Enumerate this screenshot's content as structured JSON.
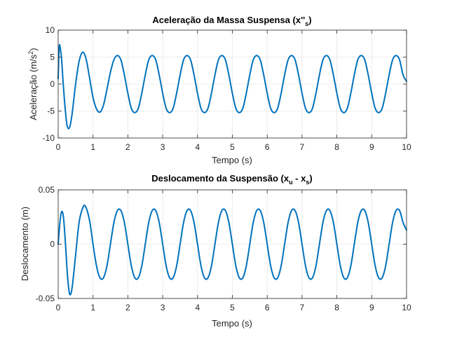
{
  "colors": {
    "series": "#0072BD",
    "axes": "#262626",
    "grid": "#dfdfdf"
  },
  "chart_data": [
    {
      "type": "line",
      "title_main": "Aceleração da Massa Suspensa (x''",
      "title_sub": "s",
      "title_end": ")",
      "xlabel": "Tempo (s)",
      "ylabel_main": "Aceleração (m/s",
      "ylabel_sup": "2",
      "ylabel_end": ")",
      "xlim": [
        0,
        10
      ],
      "ylim": [
        -10,
        10
      ],
      "xticks": [
        0,
        1,
        2,
        3,
        4,
        5,
        6,
        7,
        8,
        9,
        10
      ],
      "yticks": [
        -10,
        -5,
        0,
        5,
        10
      ],
      "xtick_labels": [
        "0",
        "1",
        "2",
        "3",
        "4",
        "5",
        "6",
        "7",
        "8",
        "9",
        "10"
      ],
      "ytick_labels": [
        "-10",
        "-5",
        "0",
        "5",
        "10"
      ],
      "grid": true,
      "series": [
        {
          "x": [
            0,
            0.03,
            0.07,
            0.1,
            0.14,
            0.2,
            0.26,
            0.33,
            0.4,
            0.5,
            0.6,
            0.7,
            0.8,
            0.9,
            1.0,
            1.1,
            1.2,
            1.3,
            1.4,
            1.5,
            1.6,
            1.7,
            1.8,
            1.9,
            2.0,
            2.1,
            2.2,
            2.3,
            2.4,
            2.5,
            2.6,
            2.7,
            2.8,
            2.9,
            3.0,
            3.1,
            3.2,
            3.3,
            3.4,
            3.5,
            3.6,
            3.7,
            3.8,
            3.9,
            4.0,
            4.1,
            4.2,
            4.3,
            4.4,
            4.5,
            4.6,
            4.7,
            4.8,
            4.9,
            5.0,
            5.1,
            5.2,
            5.3,
            5.4,
            5.5,
            5.6,
            5.7,
            5.8,
            5.9,
            6.0,
            6.1,
            6.2,
            6.3,
            6.4,
            6.5,
            6.6,
            6.7,
            6.8,
            6.9,
            7.0,
            7.1,
            7.2,
            7.3,
            7.4,
            7.5,
            7.6,
            7.7,
            7.8,
            7.9,
            8.0,
            8.1,
            8.2,
            8.3,
            8.4,
            8.5,
            8.6,
            8.7,
            8.8,
            8.9,
            9.0,
            9.1,
            9.2,
            9.3,
            9.4,
            9.5,
            9.6,
            9.7,
            9.8,
            9.9,
            10.0
          ],
          "y": [
            1.0,
            7.0,
            6.2,
            4.5,
            0.5,
            -4.5,
            -7.8,
            -8.0,
            -5.5,
            0.0,
            4.2,
            5.9,
            4.7,
            1.2,
            -2.5,
            -4.6,
            -5.2,
            -3.9,
            -1.0,
            2.2,
            4.5,
            5.3,
            4.5,
            1.7,
            -1.7,
            -4.5,
            -5.3,
            -4.5,
            -1.7,
            1.7,
            4.5,
            5.3,
            4.5,
            1.7,
            -1.7,
            -4.5,
            -5.3,
            -4.5,
            -1.7,
            1.7,
            4.5,
            5.3,
            4.5,
            1.7,
            -1.7,
            -4.5,
            -5.3,
            -4.5,
            -1.7,
            1.7,
            4.5,
            5.3,
            4.5,
            1.7,
            -1.7,
            -4.5,
            -5.3,
            -4.5,
            -1.7,
            1.7,
            4.5,
            5.3,
            4.5,
            1.7,
            -1.7,
            -4.5,
            -5.3,
            -4.5,
            -1.7,
            1.7,
            4.5,
            5.3,
            4.5,
            1.7,
            -1.7,
            -4.5,
            -5.3,
            -4.5,
            -1.7,
            1.7,
            4.5,
            5.3,
            4.5,
            1.7,
            -1.7,
            -4.5,
            -5.3,
            -4.5,
            -1.7,
            1.7,
            4.5,
            5.3,
            4.5,
            1.7,
            -1.7,
            -4.5,
            -5.3,
            -4.5,
            -1.7,
            1.7,
            4.5,
            5.3,
            4.5,
            1.7,
            0.5
          ]
        }
      ]
    },
    {
      "type": "line",
      "title_main": "Deslocamento da Suspensão (x",
      "title_sub": "u",
      "title_mid": " - x",
      "title_sub2": "s",
      "title_end": ")",
      "xlabel": "Tempo (s)",
      "ylabel": "Deslocamento (m)",
      "xlim": [
        0,
        10
      ],
      "ylim": [
        -0.05,
        0.05
      ],
      "xticks": [
        0,
        1,
        2,
        3,
        4,
        5,
        6,
        7,
        8,
        9,
        10
      ],
      "yticks": [
        -0.05,
        0,
        0.05
      ],
      "xtick_labels": [
        "0",
        "1",
        "2",
        "3",
        "4",
        "5",
        "6",
        "7",
        "8",
        "9",
        "10"
      ],
      "ytick_labels": [
        "-0.05",
        "0",
        "0.05"
      ],
      "grid": true,
      "series": [
        {
          "x": [
            0,
            0.05,
            0.1,
            0.15,
            0.2,
            0.27,
            0.33,
            0.4,
            0.5,
            0.6,
            0.7,
            0.78,
            0.9,
            1.0,
            1.1,
            1.2,
            1.3,
            1.4,
            1.5,
            1.6,
            1.7,
            1.8,
            1.9,
            2.0,
            2.1,
            2.2,
            2.3,
            2.4,
            2.5,
            2.6,
            2.7,
            2.8,
            2.9,
            3.0,
            3.1,
            3.2,
            3.3,
            3.4,
            3.5,
            3.6,
            3.7,
            3.8,
            3.9,
            4.0,
            4.1,
            4.2,
            4.3,
            4.4,
            4.5,
            4.6,
            4.7,
            4.8,
            4.9,
            5.0,
            5.1,
            5.2,
            5.3,
            5.4,
            5.5,
            5.6,
            5.7,
            5.8,
            5.9,
            6.0,
            6.1,
            6.2,
            6.3,
            6.4,
            6.5,
            6.6,
            6.7,
            6.8,
            6.9,
            7.0,
            7.1,
            7.2,
            7.3,
            7.4,
            7.5,
            7.6,
            7.7,
            7.8,
            7.9,
            8.0,
            8.1,
            8.2,
            8.3,
            8.4,
            8.5,
            8.6,
            8.7,
            8.8,
            8.9,
            9.0,
            9.1,
            9.2,
            9.3,
            9.4,
            9.5,
            9.6,
            9.7,
            9.8,
            9.9,
            10.0
          ],
          "y": [
            0.0,
            0.02,
            0.03,
            0.025,
            0.005,
            -0.03,
            -0.046,
            -0.04,
            -0.01,
            0.02,
            0.033,
            0.035,
            0.022,
            0.0,
            -0.02,
            -0.031,
            -0.031,
            -0.02,
            0.0,
            0.02,
            0.031,
            0.031,
            0.02,
            0.0,
            -0.02,
            -0.031,
            -0.031,
            -0.02,
            0.0,
            0.02,
            0.031,
            0.031,
            0.02,
            0.0,
            -0.02,
            -0.031,
            -0.031,
            -0.02,
            0.0,
            0.02,
            0.031,
            0.031,
            0.02,
            0.0,
            -0.02,
            -0.031,
            -0.031,
            -0.02,
            0.0,
            0.02,
            0.031,
            0.031,
            0.02,
            0.0,
            -0.02,
            -0.031,
            -0.031,
            -0.02,
            0.0,
            0.02,
            0.031,
            0.031,
            0.02,
            0.0,
            -0.02,
            -0.031,
            -0.031,
            -0.02,
            0.0,
            0.02,
            0.031,
            0.031,
            0.02,
            0.0,
            -0.02,
            -0.031,
            -0.031,
            -0.02,
            0.0,
            0.02,
            0.031,
            0.031,
            0.02,
            0.0,
            -0.02,
            -0.031,
            -0.031,
            -0.02,
            0.0,
            0.02,
            0.031,
            0.031,
            0.02,
            0.0,
            -0.02,
            -0.031,
            -0.031,
            -0.02,
            0.0,
            0.02,
            0.031,
            0.031,
            0.02,
            0.013
          ]
        }
      ]
    }
  ]
}
